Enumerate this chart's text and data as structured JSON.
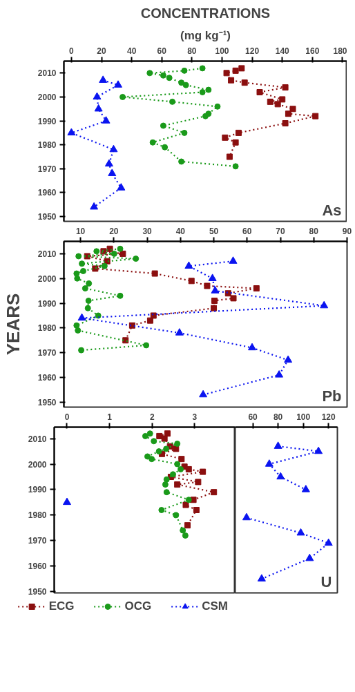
{
  "chart_data": [
    {
      "type": "line",
      "title": "CONCENTRATIONS",
      "subtitle": "(mg kg⁻¹)",
      "xlim": [
        -5,
        183
      ],
      "xticks": [
        0,
        20,
        40,
        60,
        80,
        100,
        120,
        140,
        160,
        180
      ],
      "ylim": [
        1948,
        2015
      ],
      "yticks": [
        1950,
        1960,
        1970,
        1980,
        1990,
        2000,
        2010
      ],
      "line_style": "dotted",
      "annotations": [
        "As"
      ],
      "series": [
        {
          "color": "#8b0f0f",
          "marker": "square",
          "x": [
            113,
            109,
            103,
            106,
            115,
            142,
            125,
            140,
            132,
            137,
            147,
            144,
            162,
            142,
            111,
            102,
            109,
            105
          ],
          "values": [
            2012,
            2011,
            2010,
            2007,
            2006,
            2004,
            2002,
            1999,
            1998,
            1997,
            1995,
            1993,
            1992,
            1989,
            1985,
            1983,
            1981,
            1975
          ]
        },
        {
          "color": "#1a9a1a",
          "marker": "circle",
          "x": [
            87,
            75,
            52,
            61,
            65,
            73,
            76,
            91,
            87,
            34,
            67,
            97,
            91,
            89,
            61,
            75,
            54,
            62,
            73,
            109
          ],
          "values": [
            2012,
            2011,
            2010,
            2009,
            2008,
            2006,
            2005,
            2003,
            2002,
            2000,
            1998,
            1996,
            1993,
            1992,
            1988,
            1985,
            1981,
            1979,
            1973,
            1971
          ]
        },
        {
          "color": "#0a14f0",
          "marker": "triangle",
          "x": [
            21,
            31,
            17,
            18,
            23,
            0,
            28,
            25,
            27,
            33,
            15
          ],
          "values": [
            2007,
            2005,
            2000,
            1995,
            1990,
            1985,
            1978,
            1972,
            1968,
            1962,
            1954
          ]
        }
      ]
    },
    {
      "type": "line",
      "ylabel": "YEARS",
      "xlim": [
        5,
        90
      ],
      "xticks": [
        10,
        20,
        30,
        40,
        50,
        60,
        70,
        80,
        90
      ],
      "ylim": [
        1948,
        2015
      ],
      "yticks": [
        1950,
        1960,
        1970,
        1980,
        1990,
        2000,
        2010
      ],
      "line_style": "dotted",
      "annotations": [
        "Pb"
      ],
      "series": [
        {
          "color": "#8b0f0f",
          "marker": "square",
          "x": [
            18.8,
            16.9,
            22.7,
            12.0,
            18.0,
            14.4,
            32.3,
            43.3,
            48.0,
            62.8,
            54.3,
            55.9,
            50.2,
            50.0,
            31.9,
            30.9,
            25.5,
            23.5
          ],
          "values": [
            2012,
            2011,
            2010,
            2009,
            2007,
            2004,
            2002,
            1999,
            1997,
            1996,
            1994,
            1992,
            1991,
            1988,
            1985,
            1983,
            1981,
            1975
          ]
        },
        {
          "color": "#1a9a1a",
          "marker": "circle",
          "x": [
            21.9,
            14.8,
            20.1,
            9.4,
            26.6,
            10.4,
            17.2,
            10.8,
            8.8,
            9.0,
            12.5,
            11.4,
            21.9,
            12.4,
            12.2,
            15.3,
            8.8,
            9.2,
            29.7,
            10.2
          ],
          "values": [
            2012,
            2011,
            2010,
            2009,
            2008,
            2006,
            2005,
            2003,
            2002,
            2000,
            1998,
            1996,
            1993,
            1991,
            1988,
            1985,
            1981,
            1979,
            1973,
            1971
          ]
        },
        {
          "color": "#0a14f0",
          "marker": "triangle",
          "x": [
            55.8,
            42.5,
            49.6,
            50.4,
            83.1,
            10.4,
            39.7,
            61.5,
            72.3,
            69.6,
            46.8
          ],
          "values": [
            2007,
            2005,
            2000,
            1995,
            1989,
            1984,
            1978,
            1972,
            1967,
            1961,
            1953
          ]
        }
      ]
    },
    {
      "type": "line",
      "xlim": [
        -0.3,
        3.95
      ],
      "xticks": [
        0,
        1,
        2,
        3
      ],
      "ylim": [
        1949.5,
        2014.5
      ],
      "yticks": [
        1950,
        1960,
        1970,
        1980,
        1990,
        2000,
        2010
      ],
      "line_style": "dotted",
      "legend": "bottom",
      "series": [
        {
          "name": "ECG",
          "color": "#8b0f0f",
          "marker": "square",
          "x": [
            2.36,
            2.17,
            2.29,
            2.42,
            2.56,
            2.23,
            2.69,
            2.76,
            2.86,
            3.19,
            2.44,
            3.08,
            2.59,
            3.45,
            2.97,
            2.79,
            3.04,
            2.83
          ],
          "values": [
            2012,
            2011,
            2010,
            2007,
            2006,
            2004,
            2002,
            1999,
            1998,
            1997,
            1995,
            1993,
            1992,
            1989,
            1986,
            1984,
            1982,
            1976
          ]
        },
        {
          "name": "OCG",
          "color": "#1a9a1a",
          "marker": "circle",
          "x": [
            1.95,
            1.84,
            2.04,
            2.59,
            2.33,
            2.16,
            1.89,
            1.99,
            2.59,
            2.67,
            2.49,
            2.34,
            2.31,
            2.34,
            2.86,
            2.22,
            2.56,
            2.72,
            2.78
          ],
          "values": [
            2012,
            2011,
            2009,
            2008,
            2006,
            2005,
            2003,
            2002,
            2000,
            1998,
            1996,
            1994,
            1992,
            1989,
            1986,
            1982,
            1980,
            1974,
            1972
          ]
        },
        {
          "name": "CSM",
          "color": "#0a14f0",
          "marker": "triangle",
          "x": [
            0
          ],
          "values": [
            1985
          ]
        }
      ]
    },
    {
      "type": "line",
      "xlim": [
        46,
        127
      ],
      "xticks": [
        60,
        80,
        100,
        120
      ],
      "ylim": [
        1949.5,
        2014.5
      ],
      "tick_labels": "x",
      "line_style": "dotted",
      "annotations": [
        "U"
      ],
      "series": [
        {
          "color": "#0a14f0",
          "marker": "triangle",
          "x": [
            80,
            112,
            73,
            82,
            102,
            null,
            55,
            98,
            120,
            105,
            67
          ],
          "values": [
            2007,
            2005,
            2000,
            1995,
            1990,
            null,
            1979,
            1973,
            1969,
            1963,
            1955
          ]
        }
      ]
    }
  ]
}
